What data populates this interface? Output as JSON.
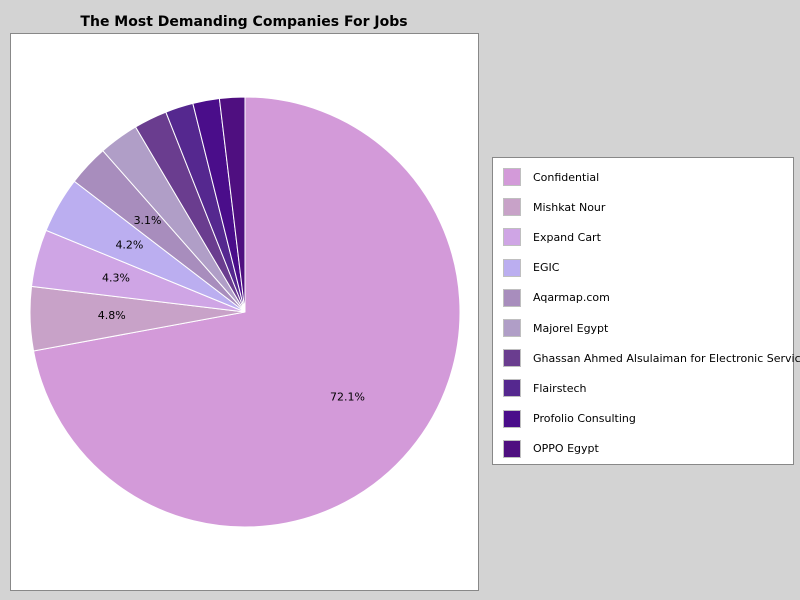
{
  "chart_data": {
    "type": "pie",
    "title": "The Most Demanding Companies For Jobs",
    "legend_position": "right",
    "start_angle_deg": 90,
    "direction": "clockwise",
    "slices": [
      {
        "label": "Confidential",
        "value": 72.1,
        "label_text": "72.1%",
        "color": "#d39ad9"
      },
      {
        "label": "Mishkat Nour",
        "value": 4.8,
        "label_text": "4.8%",
        "color": "#c8a2c8"
      },
      {
        "label": "Expand Cart",
        "value": 4.3,
        "label_text": "4.3%",
        "color": "#cfa5e5"
      },
      {
        "label": "EGIC",
        "value": 4.2,
        "label_text": "4.2%",
        "color": "#bbaef0"
      },
      {
        "label": "Aqarmap.com",
        "value": 3.1,
        "label_text": "3.1%",
        "color": "#a88dbd"
      },
      {
        "label": "Majorel Egypt",
        "value": 3.0,
        "label_text": "",
        "color": "#b09ec7"
      },
      {
        "label": "Ghassan Ahmed Alsulaiman for Electronic Services",
        "value": 2.5,
        "label_text": "",
        "color": "#6a3d8f"
      },
      {
        "label": "Flairstech",
        "value": 2.1,
        "label_text": "",
        "color": "#55288f"
      },
      {
        "label": "Profolio Consulting",
        "value": 2.0,
        "label_text": "",
        "color": "#4a0d8a"
      },
      {
        "label": "OPPO Egypt",
        "value": 1.9,
        "label_text": "",
        "color": "#4f0f80"
      }
    ]
  }
}
